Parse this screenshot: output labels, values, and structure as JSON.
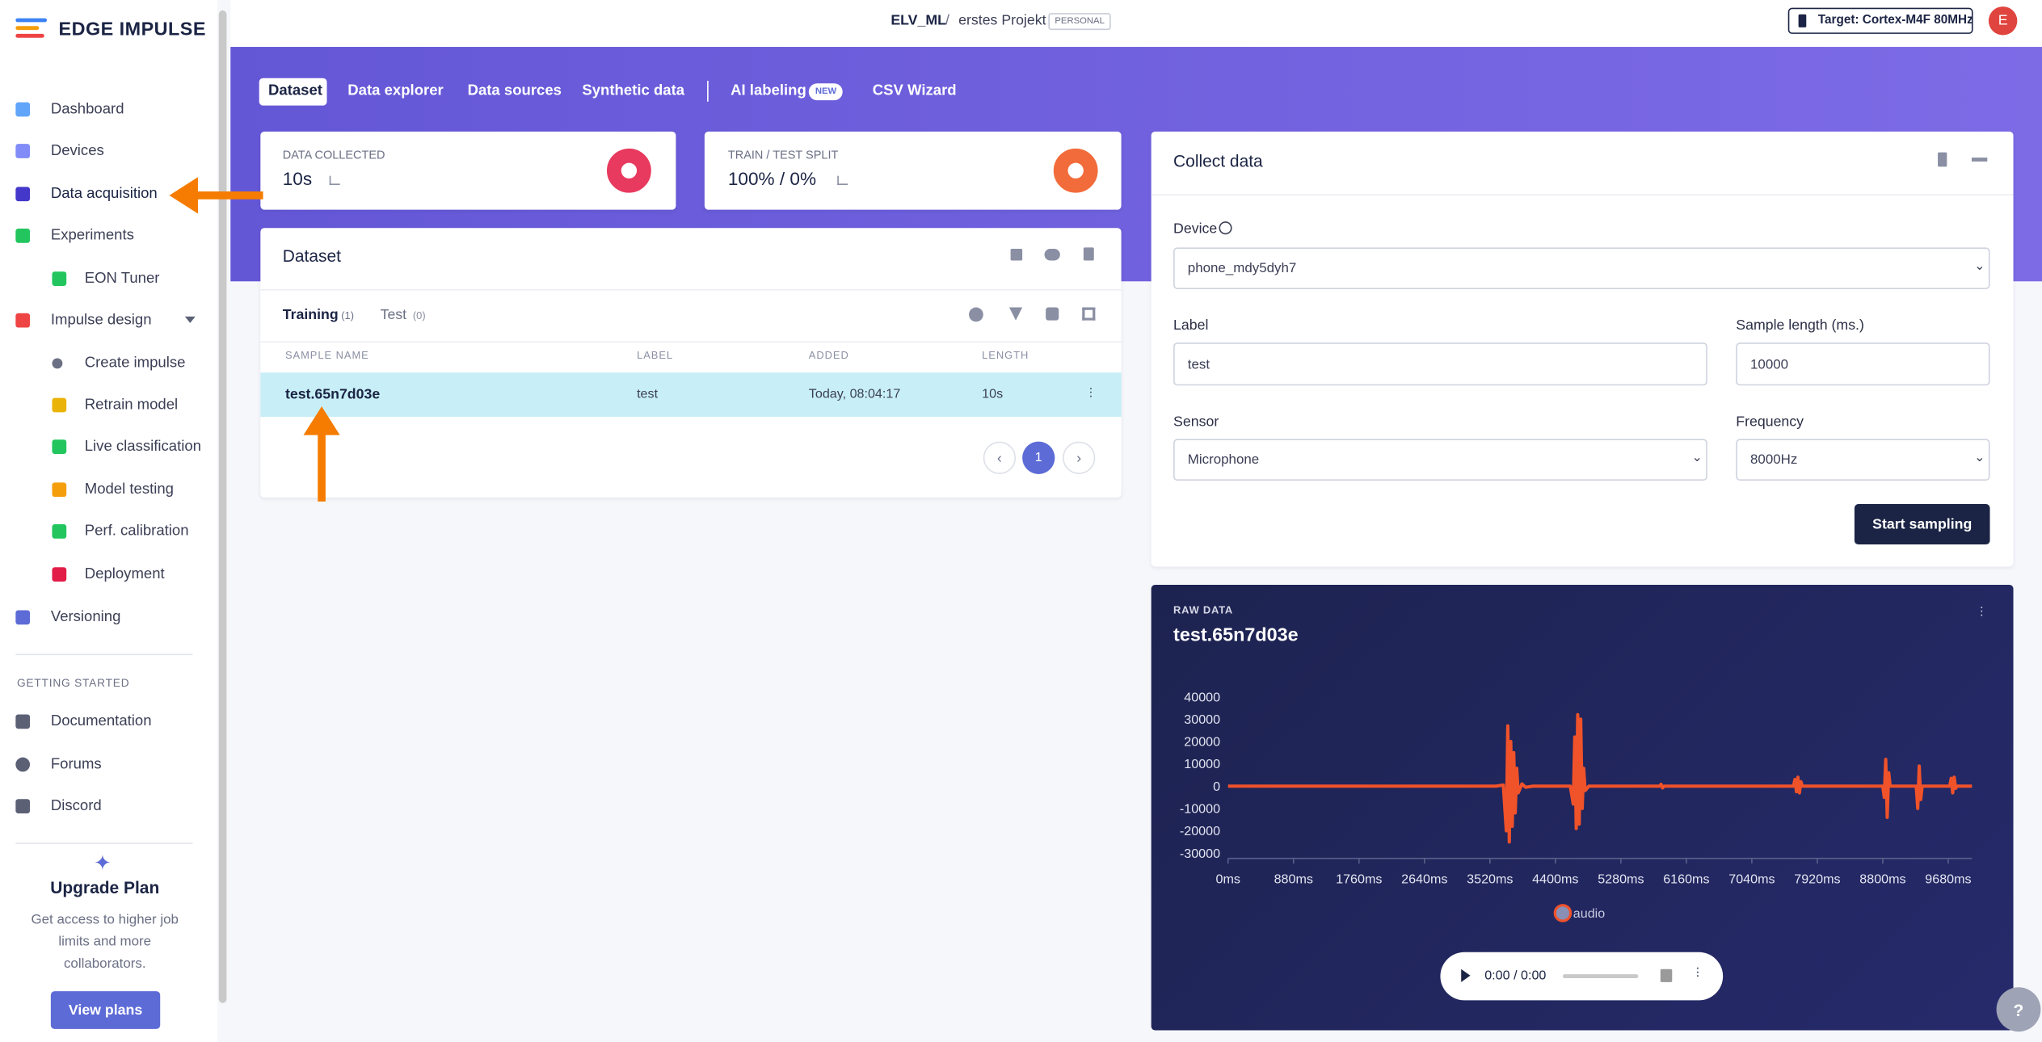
{
  "brand": "EDGE IMPULSE",
  "nav": [
    "Dashboard",
    "Devices",
    "Data acquisition",
    "Experiments",
    "EON Tuner",
    "Impulse design",
    "Create impulse",
    "Retrain model",
    "Live classification",
    "Model testing",
    "Perf. calibration",
    "Deployment",
    "Versioning"
  ],
  "getting_started": {
    "title": "GETTING STARTED",
    "items": [
      "Documentation",
      "Forums",
      "Discord"
    ]
  },
  "upgrade": {
    "title": "Upgrade Plan",
    "text": "Get access to higher job limits and more collaborators.",
    "button": "View plans"
  },
  "header": {
    "owner": "ELV_ML",
    "separator": "/",
    "project": "erstes Projekt",
    "badge": "PERSONAL",
    "target": "Target: Cortex-M4F 80MHz",
    "avatar": "E"
  },
  "tabs": [
    "Dataset",
    "Data explorer",
    "Data sources",
    "Synthetic data",
    "AI labeling",
    "CSV Wizard"
  ],
  "tab_badge": "NEW",
  "stats": [
    {
      "label": "DATA COLLECTED",
      "value": "10s"
    },
    {
      "label": "TRAIN / TEST SPLIT",
      "value": "100% / 0%"
    }
  ],
  "dataset": {
    "title": "Dataset",
    "tabs": [
      {
        "name": "Training",
        "count": "(1)"
      },
      {
        "name": "Test",
        "count": "(0)"
      }
    ],
    "columns": [
      "SAMPLE NAME",
      "LABEL",
      "ADDED",
      "LENGTH"
    ],
    "rows": [
      [
        "test.65n7d03e",
        "test",
        "Today, 08:04:17",
        "10s"
      ]
    ],
    "page": "1"
  },
  "collect": {
    "title": "Collect data",
    "device_label": "Device",
    "device": "phone_mdy5dyh7",
    "label_label": "Label",
    "label": "test",
    "length_label": "Sample length (ms.)",
    "length": "10000",
    "sensor_label": "Sensor",
    "sensor": "Microphone",
    "frequency_label": "Frequency",
    "frequency": "8000Hz",
    "button": "Start sampling"
  },
  "raw_data": {
    "kicker": "RAW DATA",
    "title": "test.65n7d03e",
    "player_time": "0:00 / 0:00"
  },
  "chart_data": {
    "type": "line",
    "x": [
      0,
      3600,
      3700,
      3740,
      3760,
      3780,
      3800,
      3820,
      3840,
      3860,
      3880,
      3900,
      3950,
      4000,
      4100,
      4600,
      4640,
      4660,
      4680,
      4700,
      4720,
      4740,
      4760,
      4780,
      4800,
      4850,
      5800,
      5820,
      5840,
      5860,
      7600,
      7620,
      7640,
      7660,
      7680,
      7700,
      7720,
      8800,
      8820,
      8840,
      8860,
      8880,
      8900,
      9250,
      9270,
      9290,
      9310,
      9330,
      9700,
      9720,
      9740,
      9760,
      9780,
      9800,
      9999
    ],
    "series": [
      {
        "name": "audio",
        "color": "#f0522a",
        "values": [
          0,
          0,
          500,
          -20000,
          27000,
          -25000,
          20000,
          -18000,
          15000,
          -12000,
          8000,
          -3000,
          1000,
          -500,
          0,
          0,
          -8000,
          22000,
          -19000,
          32000,
          -17000,
          30000,
          -10000,
          8000,
          -2000,
          0,
          0,
          800,
          -800,
          0,
          0,
          3000,
          -2500,
          4000,
          -3000,
          2000,
          0,
          0,
          -5000,
          12000,
          -14000,
          6000,
          0,
          0,
          -10000,
          9000,
          -6000,
          0,
          0,
          3500,
          -3000,
          4000,
          -1000,
          0,
          0
        ]
      }
    ],
    "xlim": [
      0,
      10000
    ],
    "ylim": [
      -30000,
      40000
    ],
    "xticks": [
      {
        "value": 0,
        "label": "0ms"
      },
      {
        "value": 880,
        "label": "880ms"
      },
      {
        "value": 1760,
        "label": "1760ms"
      },
      {
        "value": 2640,
        "label": "2640ms"
      },
      {
        "value": 3520,
        "label": "3520ms"
      },
      {
        "value": 4400,
        "label": "4400ms"
      },
      {
        "value": 5280,
        "label": "5280ms"
      },
      {
        "value": 6160,
        "label": "6160ms"
      },
      {
        "value": 7040,
        "label": "7040ms"
      },
      {
        "value": 7920,
        "label": "7920ms"
      },
      {
        "value": 8800,
        "label": "8800ms"
      },
      {
        "value": 9680,
        "label": "9680ms"
      }
    ],
    "yticks": [
      -30000,
      -20000,
      -10000,
      0,
      10000,
      20000,
      30000,
      40000
    ],
    "grid": false,
    "legend": "bottom"
  }
}
